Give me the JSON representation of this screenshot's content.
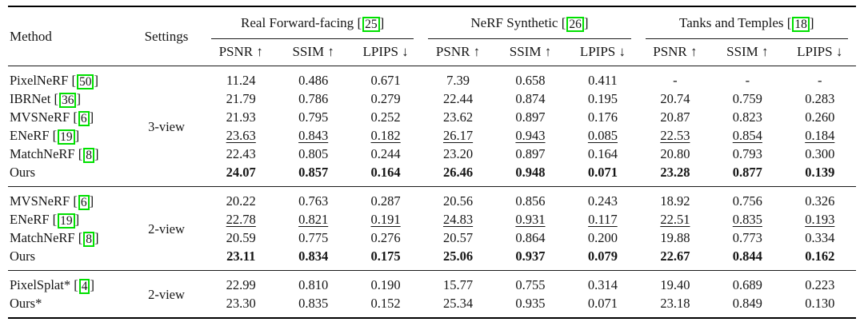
{
  "table": {
    "accent_green": "#00e000",
    "citation": {
      "prefix": "[",
      "suffix": "]"
    },
    "header": {
      "method": "Method",
      "settings": "Settings",
      "groups": [
        {
          "title": "Real Forward-facing",
          "cite": "25"
        },
        {
          "title": "NeRF Synthetic",
          "cite": "26"
        },
        {
          "title": "Tanks and Temples",
          "cite": "18"
        }
      ],
      "metrics": [
        "PSNR ↑",
        "SSIM ↑",
        "LPIPS ↓"
      ]
    },
    "sections": [
      {
        "setting": "3-view",
        "rows": [
          {
            "method": "PixelNeRF",
            "cite": "50",
            "style": "normal",
            "values": [
              "11.24",
              "0.486",
              "0.671",
              "7.39",
              "0.658",
              "0.411",
              "-",
              "-",
              "-"
            ]
          },
          {
            "method": "IBRNet",
            "cite": "36",
            "style": "normal",
            "values": [
              "21.79",
              "0.786",
              "0.279",
              "22.44",
              "0.874",
              "0.195",
              "20.74",
              "0.759",
              "0.283"
            ]
          },
          {
            "method": "MVSNeRF",
            "cite": "6",
            "style": "normal",
            "values": [
              "21.93",
              "0.795",
              "0.252",
              "23.62",
              "0.897",
              "0.176",
              "20.87",
              "0.823",
              "0.260"
            ]
          },
          {
            "method": "ENeRF",
            "cite": "19",
            "style": "underline",
            "values": [
              "23.63",
              "0.843",
              "0.182",
              "26.17",
              "0.943",
              "0.085",
              "22.53",
              "0.854",
              "0.184"
            ]
          },
          {
            "method": "MatchNeRF",
            "cite": "8",
            "style": "normal",
            "values": [
              "22.43",
              "0.805",
              "0.244",
              "23.20",
              "0.897",
              "0.164",
              "20.80",
              "0.793",
              "0.300"
            ]
          },
          {
            "method": "Ours",
            "cite": null,
            "style": "bold",
            "values": [
              "24.07",
              "0.857",
              "0.164",
              "26.46",
              "0.948",
              "0.071",
              "23.28",
              "0.877",
              "0.139"
            ]
          }
        ]
      },
      {
        "setting": "2-view",
        "rows": [
          {
            "method": "MVSNeRF",
            "cite": "6",
            "style": "normal",
            "values": [
              "20.22",
              "0.763",
              "0.287",
              "20.56",
              "0.856",
              "0.243",
              "18.92",
              "0.756",
              "0.326"
            ]
          },
          {
            "method": "ENeRF",
            "cite": "19",
            "style": "underline",
            "values": [
              "22.78",
              "0.821",
              "0.191",
              "24.83",
              "0.931",
              "0.117",
              "22.51",
              "0.835",
              "0.193"
            ]
          },
          {
            "method": "MatchNeRF",
            "cite": "8",
            "style": "normal",
            "values": [
              "20.59",
              "0.775",
              "0.276",
              "20.57",
              "0.864",
              "0.200",
              "19.88",
              "0.773",
              "0.334"
            ]
          },
          {
            "method": "Ours",
            "cite": null,
            "style": "bold",
            "values": [
              "23.11",
              "0.834",
              "0.175",
              "25.06",
              "0.937",
              "0.079",
              "22.67",
              "0.844",
              "0.162"
            ]
          }
        ]
      },
      {
        "setting": "2-view",
        "rows": [
          {
            "method": "PixelSplat*",
            "cite": "4",
            "style": "normal",
            "values": [
              "22.99",
              "0.810",
              "0.190",
              "15.77",
              "0.755",
              "0.314",
              "19.40",
              "0.689",
              "0.223"
            ]
          },
          {
            "method": "Ours*",
            "cite": null,
            "style": "normal",
            "values": [
              "23.30",
              "0.835",
              "0.152",
              "25.34",
              "0.935",
              "0.071",
              "23.18",
              "0.849",
              "0.130"
            ]
          }
        ]
      }
    ]
  }
}
